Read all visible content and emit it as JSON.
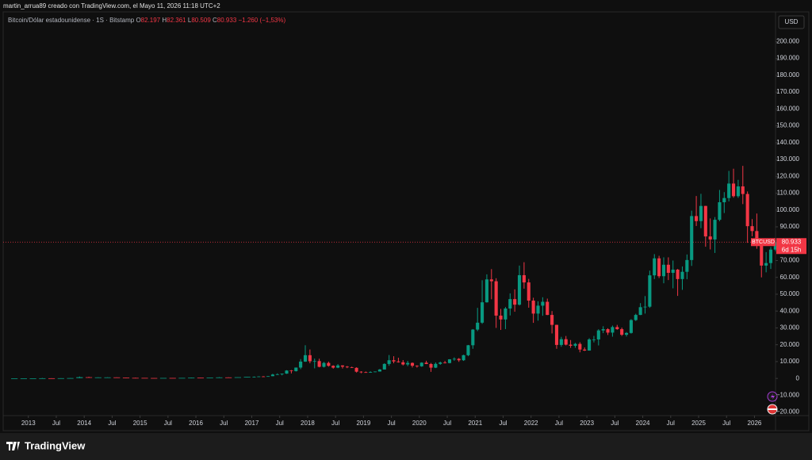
{
  "header": "martin_arrua89 creado con TradingView.com, el Mayo 11, 2026 11:18 UTC+2",
  "logo": "TradingView",
  "chart_data": {
    "type": "candlestick",
    "symbol": "Bitcoin/Dólar estadounidense · 1S · Bitstamp",
    "ohlc_legend": [
      {
        "key": "O",
        "value": 82197,
        "label": "82.197"
      },
      {
        "key": "H",
        "value": 82361,
        "label": "82.361"
      },
      {
        "key": "L",
        "value": 80509,
        "label": "80.509"
      },
      {
        "key": "C",
        "value": 80933,
        "label": "80.933"
      }
    ],
    "change": {
      "value": -1260,
      "label": "−1.260"
    },
    "change_pct": {
      "value": -1.53,
      "label": "(−1,53%)"
    },
    "currency": "USD",
    "last_price": {
      "ticker": "BTCUSD",
      "value": 80933,
      "label": "80.933",
      "countdown": "6d 15h",
      "color": "#f23645"
    },
    "up_color": "#089981",
    "down_color": "#f23645",
    "grid": false,
    "xlim": [
      "2012-08",
      "2026-06"
    ],
    "xticks": [
      {
        "value": "2013-01",
        "label": "2013"
      },
      {
        "value": "2013-07",
        "label": "Jul"
      },
      {
        "value": "2014-01",
        "label": "2014"
      },
      {
        "value": "2014-07",
        "label": "Jul"
      },
      {
        "value": "2015-01",
        "label": "2015"
      },
      {
        "value": "2015-07",
        "label": "Jul"
      },
      {
        "value": "2016-01",
        "label": "2016"
      },
      {
        "value": "2016-07",
        "label": "Jul"
      },
      {
        "value": "2017-01",
        "label": "2017"
      },
      {
        "value": "2017-07",
        "label": "Jul"
      },
      {
        "value": "2018-01",
        "label": "2018"
      },
      {
        "value": "2018-07",
        "label": "Jul"
      },
      {
        "value": "2019-01",
        "label": "2019"
      },
      {
        "value": "2019-07",
        "label": "Jul"
      },
      {
        "value": "2020-01",
        "label": "2020"
      },
      {
        "value": "2020-07",
        "label": "Jul"
      },
      {
        "value": "2021-01",
        "label": "2021"
      },
      {
        "value": "2021-07",
        "label": "Jul"
      },
      {
        "value": "2022-01",
        "label": "2022"
      },
      {
        "value": "2022-07",
        "label": "Jul"
      },
      {
        "value": "2023-01",
        "label": "2023"
      },
      {
        "value": "2023-07",
        "label": "Jul"
      },
      {
        "value": "2024-01",
        "label": "2024"
      },
      {
        "value": "2024-07",
        "label": "Jul"
      },
      {
        "value": "2025-01",
        "label": "2025"
      },
      {
        "value": "2025-07",
        "label": "Jul"
      },
      {
        "value": "2026-01",
        "label": "2026"
      }
    ],
    "ylim": [
      -31000,
      217600
    ],
    "yticks": [
      {
        "value": -20000,
        "label": "−20.000"
      },
      {
        "value": -10000,
        "label": "−10.000"
      },
      0,
      {
        "value": 10000,
        "label": "10.000"
      },
      {
        "value": 20000,
        "label": "20.000"
      },
      {
        "value": 30000,
        "label": "30.000"
      },
      {
        "value": 40000,
        "label": "40.000"
      },
      {
        "value": 50000,
        "label": "50.000"
      },
      {
        "value": 60000,
        "label": "60.000"
      },
      {
        "value": 70000,
        "label": "70.000"
      },
      {
        "value": 80000,
        "label": "80.000"
      },
      {
        "value": 90000,
        "label": "90.000"
      },
      {
        "value": 100000,
        "label": "100.000"
      },
      {
        "value": 110000,
        "label": "110.000"
      },
      {
        "value": 120000,
        "label": "120.000"
      },
      {
        "value": 130000,
        "label": "130.000"
      },
      {
        "value": 140000,
        "label": "140.000"
      },
      {
        "value": 150000,
        "label": "150.000"
      },
      {
        "value": 160000,
        "label": "160.000"
      },
      {
        "value": 170000,
        "label": "170.000"
      },
      {
        "value": 180000,
        "label": "180.000"
      },
      {
        "value": 190000,
        "label": "190.000"
      },
      {
        "value": 200000,
        "label": "200.000"
      }
    ],
    "x": [
      "2012-09",
      "2012-11",
      "2013-01",
      "2013-03",
      "2013-05",
      "2013-07",
      "2013-09",
      "2013-11",
      "2014-01",
      "2014-03",
      "2014-05",
      "2014-07",
      "2014-09",
      "2014-11",
      "2015-01",
      "2015-03",
      "2015-05",
      "2015-07",
      "2015-09",
      "2015-11",
      "2016-01",
      "2016-03",
      "2016-05",
      "2016-07",
      "2016-09",
      "2016-11",
      "2017-01",
      "2017-02",
      "2017-03",
      "2017-04",
      "2017-05",
      "2017-06",
      "2017-07",
      "2017-08",
      "2017-09",
      "2017-10",
      "2017-11",
      "2017-12",
      "2018-01",
      "2018-02",
      "2018-03",
      "2018-04",
      "2018-05",
      "2018-06",
      "2018-07",
      "2018-08",
      "2018-09",
      "2018-10",
      "2018-11",
      "2018-12",
      "2019-01",
      "2019-02",
      "2019-03",
      "2019-04",
      "2019-05",
      "2019-06",
      "2019-07",
      "2019-08",
      "2019-09",
      "2019-10",
      "2019-11",
      "2019-12",
      "2020-01",
      "2020-02",
      "2020-03",
      "2020-04",
      "2020-05",
      "2020-06",
      "2020-07",
      "2020-08",
      "2020-09",
      "2020-10",
      "2020-11",
      "2020-12",
      "2021-01",
      "2021-02",
      "2021-03",
      "2021-04",
      "2021-05",
      "2021-06",
      "2021-07",
      "2021-08",
      "2021-09",
      "2021-10",
      "2021-11",
      "2021-12",
      "2022-01",
      "2022-02",
      "2022-03",
      "2022-04",
      "2022-05",
      "2022-06",
      "2022-07",
      "2022-08",
      "2022-09",
      "2022-10",
      "2022-11",
      "2022-12",
      "2023-01",
      "2023-02",
      "2023-03",
      "2023-04",
      "2023-05",
      "2023-06",
      "2023-07",
      "2023-08",
      "2023-09",
      "2023-10",
      "2023-11",
      "2023-12",
      "2024-01",
      "2024-02",
      "2024-03",
      "2024-04",
      "2024-05",
      "2024-06",
      "2024-07",
      "2024-08",
      "2024-09",
      "2024-10",
      "2024-11",
      "2024-12",
      "2025-01",
      "2025-02",
      "2025-03",
      "2025-04",
      "2025-05",
      "2025-06",
      "2025-07",
      "2025-08",
      "2025-09",
      "2025-10",
      "2025-11",
      "2025-12",
      "2026-01",
      "2026-02",
      "2026-03",
      "2026-04",
      "2026-05"
    ],
    "open": [
      10,
      12,
      13,
      33,
      110,
      90,
      135,
      210,
      730,
      560,
      630,
      640,
      480,
      340,
      320,
      250,
      235,
      285,
      230,
      320,
      430,
      415,
      530,
      620,
      610,
      730,
      960,
      970,
      1190,
      1080,
      1350,
      2300,
      2480,
      2870,
      4700,
      4340,
      6450,
      10000,
      13800,
      10200,
      10300,
      6900,
      9200,
      7500,
      6400,
      7700,
      7000,
      6600,
      6300,
      4000,
      3700,
      3450,
      3850,
      4100,
      5300,
      8600,
      10800,
      10100,
      9600,
      8300,
      9200,
      7550,
      7200,
      9350,
      8550,
      6400,
      8650,
      9450,
      9150,
      11350,
      11650,
      10800,
      13800,
      19700,
      29000,
      33100,
      45200,
      58800,
      57700,
      37300,
      35000,
      41500,
      47100,
      43800,
      61300,
      57000,
      46200,
      38500,
      43200,
      45500,
      37700,
      31800,
      19900,
      23300,
      20050,
      19400,
      20500,
      17150,
      16550,
      23150,
      23150,
      28500,
      29250,
      27200,
      30500,
      29250,
      25950,
      27000,
      34650,
      37700,
      42300,
      42600,
      61200,
      71300,
      60700,
      67500,
      62700,
      64600,
      59000,
      63300,
      70300,
      96400,
      93400,
      102400,
      84300,
      82500,
      94200,
      104600,
      107100,
      115700,
      108200,
      114000,
      109500,
      90400,
      87500,
      78700,
      67000,
      68500,
      76500
    ],
    "high": [
      13,
      14,
      34,
      260,
      130,
      150,
      230,
      1150,
      1000,
      700,
      680,
      650,
      490,
      460,
      320,
      300,
      290,
      320,
      330,
      500,
      460,
      540,
      780,
      680,
      740,
      980,
      1150,
      1200,
      1350,
      1350,
      2760,
      3000,
      2900,
      4900,
      5000,
      6470,
      11500,
      19700,
      17200,
      11800,
      11700,
      9800,
      10000,
      7800,
      8500,
      7800,
      7400,
      7000,
      6600,
      4300,
      4100,
      4200,
      4100,
      5600,
      9000,
      13900,
      13200,
      12300,
      10900,
      10400,
      9500,
      7800,
      9600,
      10500,
      9200,
      9500,
      10000,
      10400,
      11450,
      12500,
      12100,
      14100,
      19900,
      29300,
      41900,
      58300,
      61800,
      64900,
      59500,
      41300,
      42400,
      50500,
      52900,
      67000,
      69000,
      59100,
      47900,
      45800,
      48200,
      47400,
      40000,
      31900,
      24700,
      25200,
      22800,
      21100,
      21500,
      18400,
      23900,
      25250,
      29200,
      31000,
      29800,
      31400,
      31800,
      30200,
      27500,
      35200,
      38400,
      44700,
      48900,
      64000,
      73800,
      72800,
      71900,
      71900,
      70000,
      65000,
      66500,
      73600,
      99600,
      108300,
      109600,
      102500,
      95000,
      95800,
      111900,
      110600,
      123200,
      124500,
      117900,
      126200,
      111000,
      94600,
      97900,
      79500,
      75000,
      78000,
      82400
    ],
    "low": [
      10,
      11,
      13,
      33,
      65,
      65,
      120,
      200,
      450,
      380,
      520,
      440,
      290,
      310,
      170,
      220,
      220,
      200,
      225,
      300,
      360,
      400,
      440,
      480,
      600,
      700,
      750,
      920,
      890,
      1060,
      1350,
      2100,
      1830,
      2700,
      2980,
      4100,
      5500,
      9800,
      9000,
      6000,
      6600,
      6500,
      7000,
      5800,
      6100,
      5900,
      6100,
      6200,
      3500,
      3100,
      3350,
      3400,
      3700,
      4050,
      5300,
      7500,
      9000,
      9400,
      7700,
      7300,
      6500,
      6400,
      6900,
      8500,
      3900,
      6150,
      8100,
      8900,
      8950,
      10500,
      9850,
      10400,
      13200,
      17600,
      28100,
      32400,
      45000,
      47000,
      30000,
      28800,
      29300,
      37400,
      39600,
      43300,
      53300,
      42000,
      33000,
      34300,
      37200,
      37600,
      26700,
      17600,
      18800,
      19600,
      18150,
      18200,
      15500,
      16300,
      16500,
      21400,
      19600,
      26900,
      25800,
      24800,
      28900,
      25200,
      24900,
      26600,
      34100,
      37600,
      38500,
      41900,
      59000,
      59600,
      56500,
      58400,
      53500,
      49000,
      52600,
      58900,
      66800,
      90500,
      89200,
      78200,
      76600,
      74500,
      93300,
      98200,
      105100,
      107300,
      107200,
      103500,
      80500,
      84400,
      77000,
      60000,
      63000,
      65000,
      75500
    ],
    "close": [
      12,
      13,
      33,
      110,
      90,
      135,
      210,
      730,
      560,
      630,
      640,
      480,
      340,
      320,
      250,
      235,
      285,
      230,
      320,
      430,
      415,
      530,
      620,
      610,
      730,
      960,
      970,
      1190,
      1080,
      1350,
      2300,
      2480,
      2870,
      4700,
      4340,
      6450,
      10000,
      13800,
      10200,
      10300,
      6900,
      9200,
      7500,
      6400,
      7700,
      7000,
      6600,
      6300,
      4000,
      3700,
      3450,
      3850,
      4100,
      5300,
      8600,
      10800,
      10100,
      9600,
      8300,
      9200,
      7550,
      7200,
      9350,
      8550,
      6400,
      8650,
      9450,
      9150,
      11350,
      11650,
      10800,
      13800,
      19700,
      29000,
      33100,
      45200,
      58800,
      57700,
      37300,
      35000,
      41500,
      47100,
      43800,
      61300,
      57000,
      46200,
      38500,
      43200,
      45500,
      37700,
      31800,
      19900,
      23300,
      20050,
      19400,
      20500,
      17150,
      16550,
      23150,
      23150,
      28500,
      29250,
      27200,
      30500,
      29250,
      25950,
      27000,
      34650,
      37700,
      42300,
      42600,
      61200,
      71300,
      60700,
      67500,
      62700,
      64600,
      59000,
      63300,
      70300,
      96400,
      93400,
      102400,
      84300,
      82500,
      94200,
      104600,
      107100,
      115700,
      108200,
      114000,
      109500,
      90400,
      87500,
      78700,
      67000,
      68500,
      76500,
      80933
    ]
  }
}
